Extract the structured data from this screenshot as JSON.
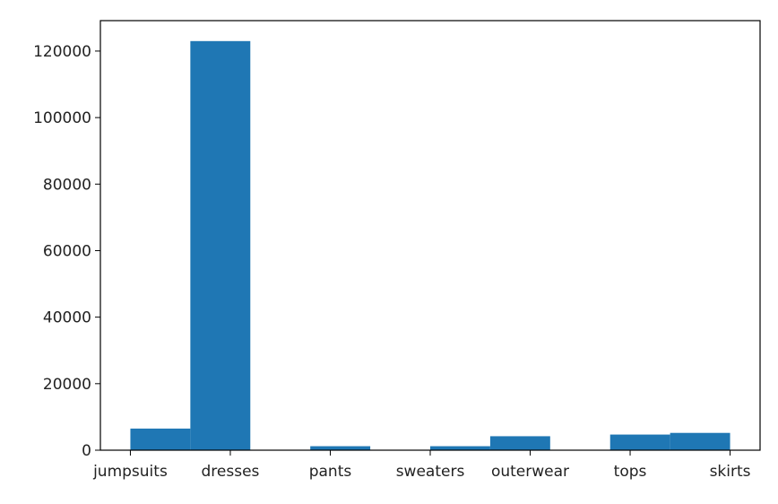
{
  "chart_data": {
    "type": "bar",
    "title": "",
    "xlabel": "",
    "ylabel": "",
    "categories": [
      "jumpsuits",
      "dresses",
      "pants",
      "sweaters",
      "outerwear",
      "tops",
      "skirts"
    ],
    "tick_positions": [
      0,
      1,
      2,
      3,
      4,
      5,
      6
    ],
    "bars": [
      {
        "x_start": 0.0,
        "x_end": 0.6,
        "value": 6500
      },
      {
        "x_start": 0.6,
        "x_end": 1.2,
        "value": 123000
      },
      {
        "x_start": 1.2,
        "x_end": 1.8,
        "value": 0
      },
      {
        "x_start": 1.8,
        "x_end": 2.4,
        "value": 1200
      },
      {
        "x_start": 2.4,
        "x_end": 3.0,
        "value": 0
      },
      {
        "x_start": 3.0,
        "x_end": 3.6,
        "value": 1200
      },
      {
        "x_start": 3.6,
        "x_end": 4.2,
        "value": 4200
      },
      {
        "x_start": 4.2,
        "x_end": 4.8,
        "value": 0
      },
      {
        "x_start": 4.8,
        "x_end": 5.4,
        "value": 4700
      },
      {
        "x_start": 5.4,
        "x_end": 6.0,
        "value": 5200
      }
    ],
    "xlim": [
      -0.3,
      6.3
    ],
    "ylim": [
      0,
      129150
    ],
    "yticks": [
      0,
      20000,
      40000,
      60000,
      80000,
      100000,
      120000
    ],
    "ytick_labels": [
      "0",
      "20000",
      "40000",
      "60000",
      "80000",
      "100000",
      "120000"
    ],
    "grid": false,
    "legend": false,
    "bar_color": "#1f77b4"
  }
}
